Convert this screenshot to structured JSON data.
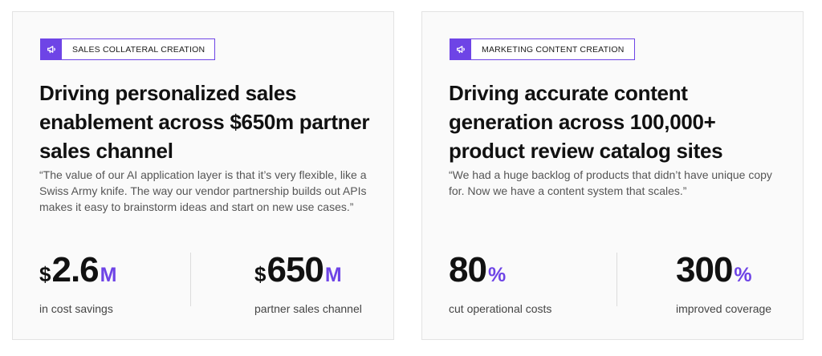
{
  "colors": {
    "accent": "#6e44e6",
    "card_bg": "#fafafa",
    "border": "#e3e3e3"
  },
  "cards": [
    {
      "tag": {
        "label": "SALES COLLATERAL CREATION",
        "icon": "megaphone-icon"
      },
      "headline": "Driving personalized sales enablement across $650m partner sales channel",
      "quote": "“The value of our AI application layer is that it’s very flexible, like a Swiss Army knife. The way our vendor partnership builds out APIs makes it easy to brainstorm ideas and start on new use cases.”",
      "stats": [
        {
          "prefix": "$",
          "number": "2.6",
          "suffix": "M",
          "caption": "in cost savings"
        },
        {
          "prefix": "$",
          "number": "650",
          "suffix": "M",
          "caption": "partner sales channel"
        }
      ]
    },
    {
      "tag": {
        "label": "MARKETING CONTENT CREATION",
        "icon": "megaphone-icon"
      },
      "headline": "Driving accurate content generation across 100,000+ product review catalog sites",
      "quote": "“We had a huge backlog of products that didn’t have unique copy for. Now we have a content system that scales.”",
      "stats": [
        {
          "prefix": "",
          "number": "80",
          "suffix": "%",
          "caption": "cut operational costs"
        },
        {
          "prefix": "",
          "number": "300",
          "suffix": "%",
          "caption": "improved coverage"
        }
      ]
    }
  ]
}
